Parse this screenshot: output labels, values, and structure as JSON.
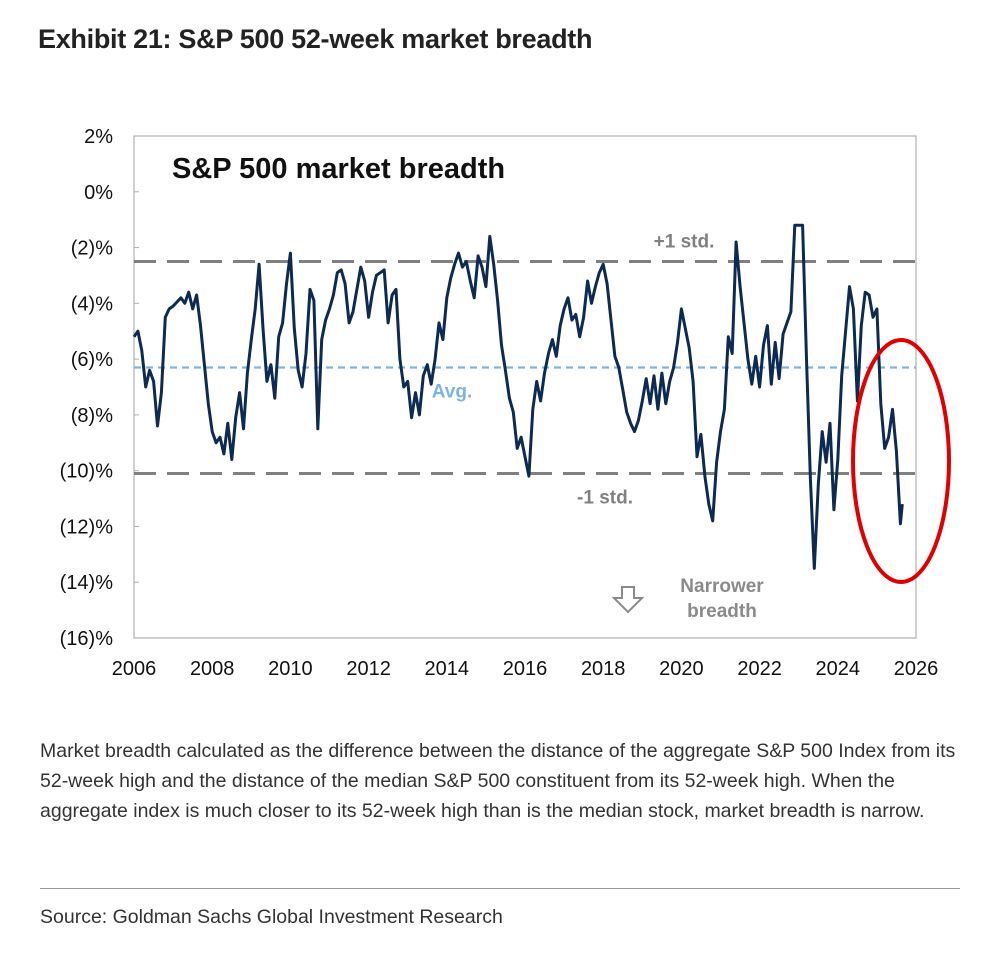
{
  "exhibit_title": "Exhibit 21: S&P 500 52-week market breadth",
  "caption": "Market breadth calculated as the difference between the distance of the aggregate S&P 500 Index from its 52-week high and the distance of the median S&P 500 constituent from its 52-week high. When the aggregate index is much closer to its 52-week high than is the median stock, market breadth is narrow.",
  "source": "Source: Goldman Sachs Global Investment Research",
  "colors": {
    "series": "#0d2a52",
    "avg_line": "#7fb4e0",
    "std_line": "#808080",
    "highlight": "#e00000",
    "annotation_text": "#8a8a8a"
  },
  "chart_data": {
    "type": "line",
    "title": "S&P 500 market breadth",
    "xlim": [
      2006,
      2026
    ],
    "ylim": [
      -16,
      2
    ],
    "x_ticks": [
      2006,
      2008,
      2010,
      2012,
      2014,
      2016,
      2018,
      2020,
      2022,
      2024,
      2026
    ],
    "y_ticks": [
      2,
      0,
      -2,
      -4,
      -6,
      -8,
      -10,
      -12,
      -14,
      -16
    ],
    "y_tick_labels": [
      "2%",
      "0%",
      "(2)%",
      "(4)%",
      "(6)%",
      "(8)%",
      "(10)%",
      "(12)%",
      "(14)%",
      "(16)%"
    ],
    "grid": false,
    "reference_lines": [
      {
        "label": "+1 std.",
        "value": -2.5,
        "style": "dashed"
      },
      {
        "label": "Avg.",
        "value": -6.3,
        "style": "dashed"
      },
      {
        "label": "-1 std.",
        "value": -10.1,
        "style": "dashed"
      }
    ],
    "annotation": {
      "text_line1": "Narrower",
      "text_line2": "breadth",
      "icon": "down-arrow-icon"
    },
    "series": [
      {
        "points": [
          [
            2006.0,
            -5.2
          ],
          [
            2006.1,
            -5.0
          ],
          [
            2006.2,
            -5.7
          ],
          [
            2006.3,
            -7.0
          ],
          [
            2006.4,
            -6.4
          ],
          [
            2006.5,
            -6.8
          ],
          [
            2006.6,
            -8.4
          ],
          [
            2006.7,
            -7.2
          ],
          [
            2006.8,
            -4.5
          ],
          [
            2006.9,
            -4.2
          ],
          [
            2007.0,
            -4.1
          ],
          [
            2007.2,
            -3.8
          ],
          [
            2007.3,
            -4.0
          ],
          [
            2007.4,
            -3.6
          ],
          [
            2007.5,
            -4.2
          ],
          [
            2007.6,
            -3.7
          ],
          [
            2007.7,
            -4.8
          ],
          [
            2007.8,
            -6.2
          ],
          [
            2007.9,
            -7.6
          ],
          [
            2008.0,
            -8.6
          ],
          [
            2008.1,
            -9.0
          ],
          [
            2008.2,
            -8.8
          ],
          [
            2008.3,
            -9.4
          ],
          [
            2008.4,
            -8.3
          ],
          [
            2008.5,
            -9.6
          ],
          [
            2008.6,
            -8.1
          ],
          [
            2008.7,
            -7.2
          ],
          [
            2008.8,
            -8.5
          ],
          [
            2008.9,
            -6.5
          ],
          [
            2009.0,
            -5.3
          ],
          [
            2009.1,
            -4.2
          ],
          [
            2009.2,
            -2.6
          ],
          [
            2009.3,
            -4.9
          ],
          [
            2009.4,
            -6.8
          ],
          [
            2009.5,
            -6.2
          ],
          [
            2009.6,
            -7.4
          ],
          [
            2009.7,
            -5.2
          ],
          [
            2009.8,
            -4.7
          ],
          [
            2009.9,
            -3.3
          ],
          [
            2010.0,
            -2.2
          ],
          [
            2010.1,
            -4.9
          ],
          [
            2010.2,
            -6.4
          ],
          [
            2010.3,
            -7.0
          ],
          [
            2010.4,
            -5.8
          ],
          [
            2010.5,
            -3.5
          ],
          [
            2010.6,
            -3.9
          ],
          [
            2010.7,
            -8.5
          ],
          [
            2010.8,
            -5.3
          ],
          [
            2010.9,
            -4.6
          ],
          [
            2011.0,
            -4.2
          ],
          [
            2011.1,
            -3.7
          ],
          [
            2011.2,
            -2.9
          ],
          [
            2011.3,
            -2.8
          ],
          [
            2011.4,
            -3.3
          ],
          [
            2011.5,
            -4.7
          ],
          [
            2011.6,
            -4.3
          ],
          [
            2011.7,
            -3.5
          ],
          [
            2011.8,
            -2.7
          ],
          [
            2011.9,
            -3.2
          ],
          [
            2012.0,
            -4.5
          ],
          [
            2012.1,
            -3.6
          ],
          [
            2012.2,
            -3.0
          ],
          [
            2012.3,
            -2.9
          ],
          [
            2012.4,
            -2.8
          ],
          [
            2012.5,
            -4.7
          ],
          [
            2012.6,
            -3.7
          ],
          [
            2012.7,
            -3.5
          ],
          [
            2012.8,
            -6.0
          ],
          [
            2012.9,
            -7.0
          ],
          [
            2013.0,
            -6.8
          ],
          [
            2013.1,
            -8.1
          ],
          [
            2013.2,
            -7.2
          ],
          [
            2013.3,
            -8.0
          ],
          [
            2013.4,
            -6.6
          ],
          [
            2013.5,
            -6.2
          ],
          [
            2013.6,
            -6.9
          ],
          [
            2013.7,
            -6.0
          ],
          [
            2013.8,
            -4.7
          ],
          [
            2013.9,
            -5.3
          ],
          [
            2014.0,
            -3.8
          ],
          [
            2014.1,
            -3.1
          ],
          [
            2014.2,
            -2.6
          ],
          [
            2014.3,
            -2.2
          ],
          [
            2014.4,
            -2.7
          ],
          [
            2014.5,
            -2.5
          ],
          [
            2014.6,
            -3.2
          ],
          [
            2014.7,
            -3.8
          ],
          [
            2014.8,
            -2.3
          ],
          [
            2014.9,
            -2.7
          ],
          [
            2015.0,
            -3.4
          ],
          [
            2015.1,
            -1.6
          ],
          [
            2015.2,
            -2.6
          ],
          [
            2015.3,
            -3.9
          ],
          [
            2015.4,
            -5.5
          ],
          [
            2015.5,
            -6.4
          ],
          [
            2015.6,
            -7.4
          ],
          [
            2015.7,
            -7.9
          ],
          [
            2015.8,
            -9.2
          ],
          [
            2015.9,
            -8.8
          ],
          [
            2016.0,
            -9.5
          ],
          [
            2016.1,
            -10.2
          ],
          [
            2016.2,
            -7.8
          ],
          [
            2016.3,
            -6.8
          ],
          [
            2016.4,
            -7.5
          ],
          [
            2016.5,
            -6.5
          ],
          [
            2016.6,
            -5.8
          ],
          [
            2016.7,
            -5.3
          ],
          [
            2016.8,
            -5.9
          ],
          [
            2016.9,
            -4.8
          ],
          [
            2017.0,
            -4.2
          ],
          [
            2017.1,
            -3.8
          ],
          [
            2017.2,
            -4.6
          ],
          [
            2017.3,
            -4.4
          ],
          [
            2017.4,
            -5.2
          ],
          [
            2017.5,
            -4.5
          ],
          [
            2017.6,
            -3.2
          ],
          [
            2017.7,
            -4.0
          ],
          [
            2017.8,
            -3.4
          ],
          [
            2017.9,
            -2.9
          ],
          [
            2018.0,
            -2.6
          ],
          [
            2018.1,
            -3.3
          ],
          [
            2018.2,
            -4.6
          ],
          [
            2018.3,
            -5.9
          ],
          [
            2018.4,
            -6.3
          ],
          [
            2018.5,
            -7.1
          ],
          [
            2018.6,
            -7.9
          ],
          [
            2018.7,
            -8.3
          ],
          [
            2018.8,
            -8.6
          ],
          [
            2018.9,
            -8.2
          ],
          [
            2019.0,
            -7.5
          ],
          [
            2019.1,
            -6.7
          ],
          [
            2019.2,
            -7.6
          ],
          [
            2019.3,
            -6.6
          ],
          [
            2019.4,
            -7.8
          ],
          [
            2019.5,
            -6.5
          ],
          [
            2019.6,
            -7.6
          ],
          [
            2019.7,
            -6.8
          ],
          [
            2019.8,
            -6.3
          ],
          [
            2019.9,
            -5.4
          ],
          [
            2020.0,
            -4.2
          ],
          [
            2020.1,
            -4.9
          ],
          [
            2020.2,
            -5.6
          ],
          [
            2020.3,
            -6.8
          ],
          [
            2020.4,
            -9.5
          ],
          [
            2020.5,
            -8.7
          ],
          [
            2020.6,
            -10.2
          ],
          [
            2020.7,
            -11.2
          ],
          [
            2020.8,
            -11.8
          ],
          [
            2020.9,
            -9.7
          ],
          [
            2021.0,
            -8.6
          ],
          [
            2021.1,
            -7.8
          ],
          [
            2021.2,
            -5.2
          ],
          [
            2021.3,
            -5.8
          ],
          [
            2021.4,
            -1.8
          ],
          [
            2021.5,
            -3.4
          ],
          [
            2021.6,
            -4.7
          ],
          [
            2021.7,
            -6.0
          ],
          [
            2021.8,
            -6.9
          ],
          [
            2021.9,
            -5.9
          ],
          [
            2022.0,
            -7.0
          ],
          [
            2022.1,
            -5.5
          ],
          [
            2022.2,
            -4.8
          ],
          [
            2022.3,
            -6.9
          ],
          [
            2022.4,
            -5.4
          ],
          [
            2022.5,
            -6.7
          ],
          [
            2022.6,
            -5.1
          ],
          [
            2022.7,
            -4.7
          ],
          [
            2022.8,
            -4.3
          ],
          [
            2022.9,
            -1.2
          ],
          [
            2023.0,
            -1.2
          ],
          [
            2023.1,
            -1.2
          ],
          [
            2023.2,
            -6.0
          ],
          [
            2023.3,
            -10.3
          ],
          [
            2023.4,
            -13.5
          ],
          [
            2023.5,
            -10.5
          ],
          [
            2023.6,
            -8.6
          ],
          [
            2023.7,
            -9.7
          ],
          [
            2023.8,
            -8.3
          ],
          [
            2023.9,
            -11.4
          ],
          [
            2024.0,
            -9.6
          ],
          [
            2024.1,
            -6.6
          ],
          [
            2024.2,
            -5.0
          ],
          [
            2024.3,
            -3.4
          ],
          [
            2024.4,
            -4.2
          ],
          [
            2024.5,
            -7.5
          ],
          [
            2024.6,
            -4.8
          ],
          [
            2024.7,
            -3.6
          ],
          [
            2024.8,
            -3.7
          ],
          [
            2024.9,
            -4.5
          ],
          [
            2025.0,
            -4.2
          ],
          [
            2025.1,
            -7.6
          ],
          [
            2025.2,
            -9.2
          ],
          [
            2025.3,
            -8.8
          ],
          [
            2025.4,
            -7.8
          ],
          [
            2025.5,
            -9.3
          ],
          [
            2025.6,
            -11.9
          ],
          [
            2025.65,
            -11.2
          ]
        ]
      }
    ]
  }
}
